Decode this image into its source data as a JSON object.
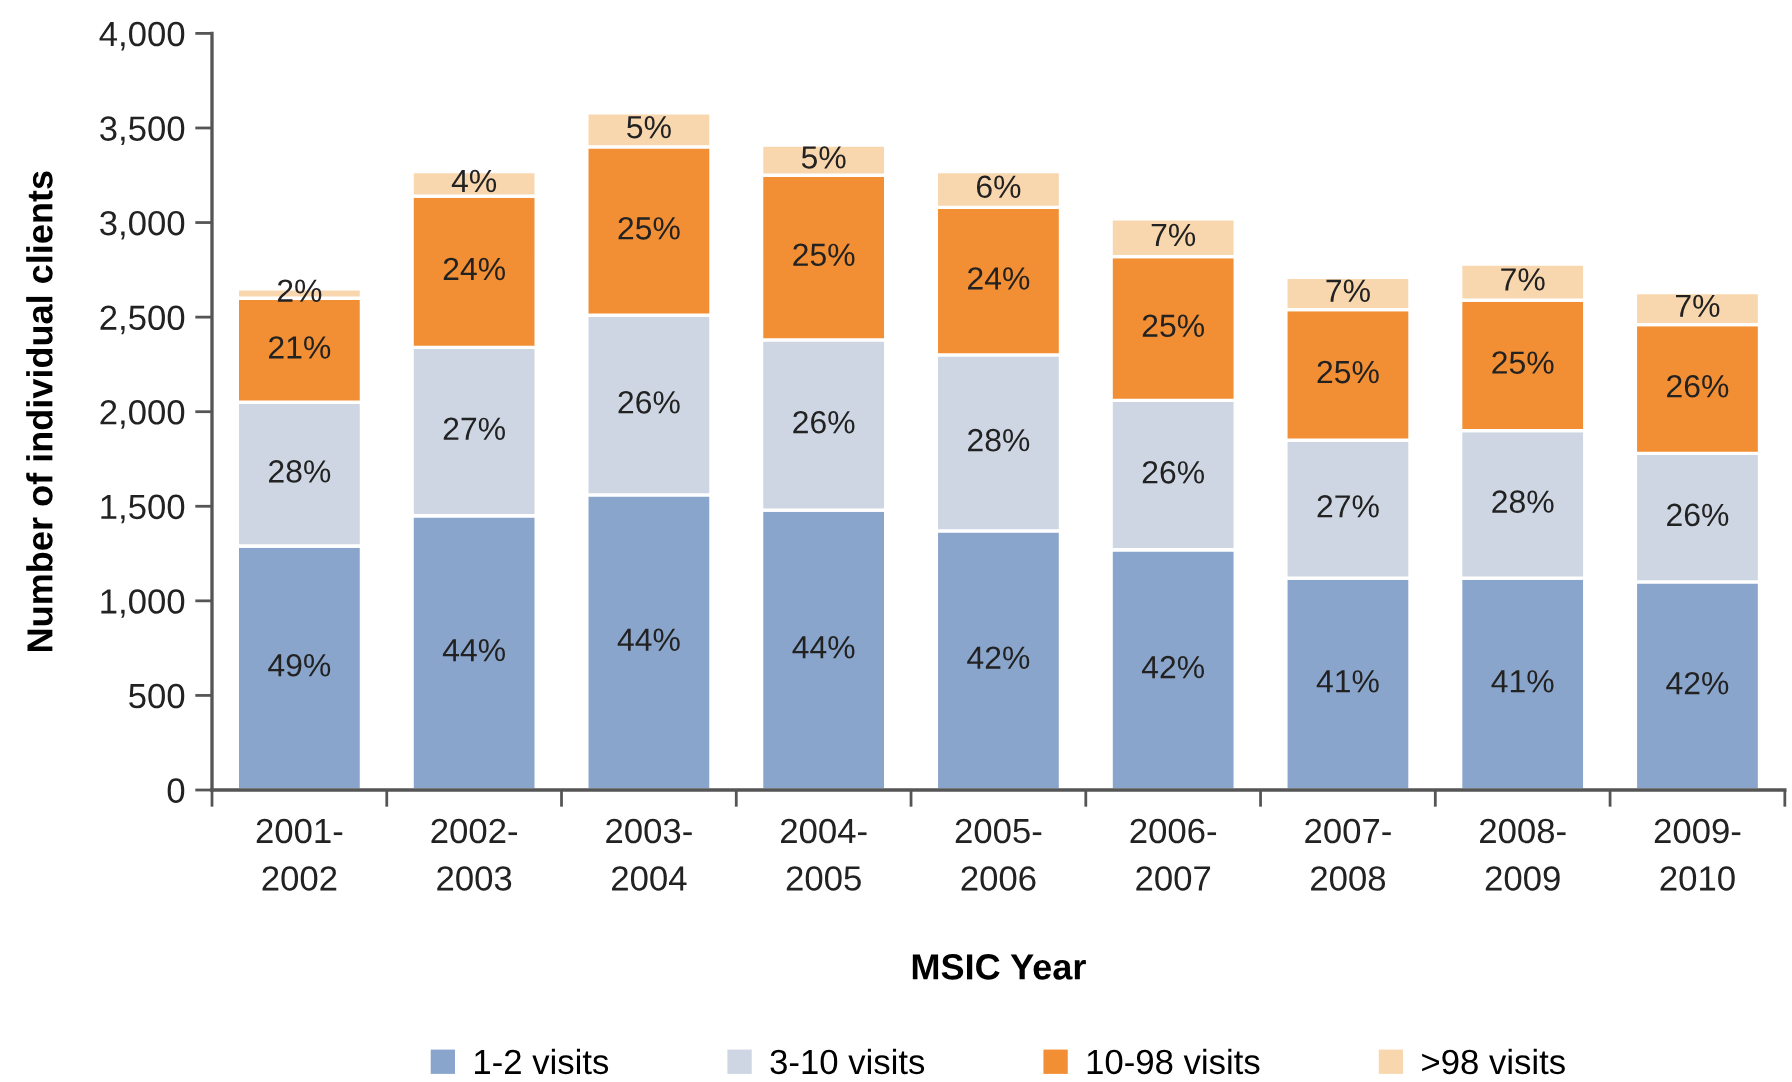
{
  "chart_data": {
    "type": "bar",
    "stacked": true,
    "xlabel": "MSIC Year",
    "ylabel": "Number of individual clients",
    "legend": "bottom",
    "categories": [
      "2001-2002",
      "2002-2003",
      "2003-2004",
      "2004-2005",
      "2005-2006",
      "2006-2007",
      "2007-2008",
      "2008-2009",
      "2009-2010"
    ],
    "ylim": [
      0,
      4000
    ],
    "yticks": [
      0,
      500,
      {
        "value": 1000,
        "label": "1,000"
      },
      {
        "value": 1500,
        "label": "1,500"
      },
      {
        "value": 2000,
        "label": "2,000"
      },
      {
        "value": 2500,
        "label": "2,500"
      },
      {
        "value": 3000,
        "label": "3,000"
      },
      {
        "value": 3500,
        "label": "3,500"
      },
      {
        "value": 4000,
        "label": "4,000"
      }
    ],
    "series": [
      {
        "name": "1-2 visits",
        "color": "#8aa5cb",
        "values": [
          1290,
          1450,
          1560,
          1480,
          1370,
          1270,
          1120,
          1120,
          1100
        ]
      },
      {
        "name": "3-10 visits",
        "color": "#cdd6e2",
        "values": [
          760,
          890,
          950,
          900,
          930,
          790,
          730,
          780,
          680
        ]
      },
      {
        "name": "10-98 visits",
        "color": "#f28e33",
        "values": [
          550,
          800,
          890,
          870,
          780,
          760,
          690,
          690,
          680
        ]
      },
      {
        "name": ">98 visits",
        "color": "#f9d7ae",
        "values": [
          50,
          130,
          180,
          160,
          190,
          200,
          170,
          190,
          170
        ]
      }
    ],
    "annotations": [
      "49%",
      "28%",
      "21%",
      "2%",
      "44%",
      "27%",
      "24%",
      "4%",
      "44%",
      "26%",
      "25%",
      "5%",
      "44%",
      "26%",
      "25%",
      "5%",
      "42%",
      "28%",
      "24%",
      "6%",
      "42%",
      "26%",
      "25%",
      "7%",
      "41%",
      "27%",
      "25%",
      "7%",
      "41%",
      "28%",
      "25%",
      "7%",
      "42%",
      "26%",
      "26%",
      "7%"
    ]
  }
}
